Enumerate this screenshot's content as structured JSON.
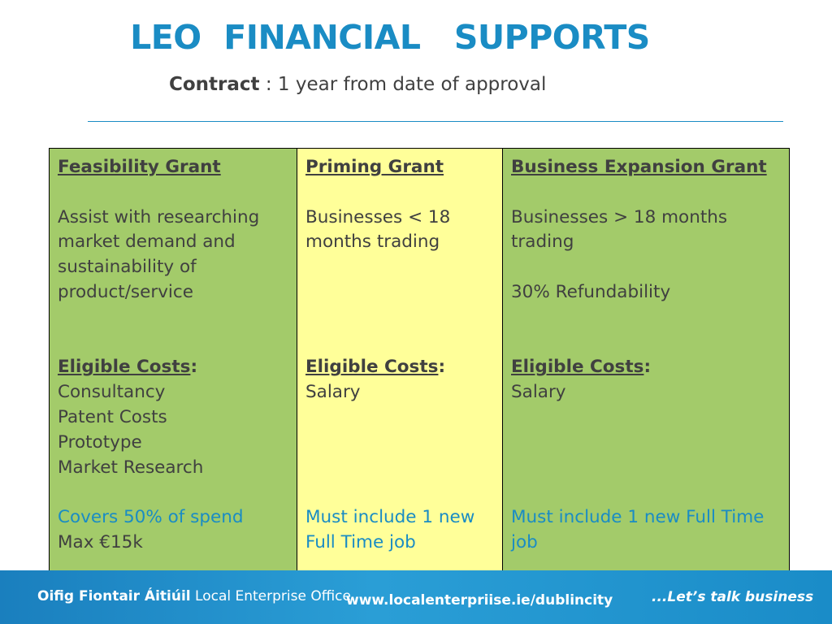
{
  "header": {
    "title": "LEO  FINANCIAL   SUPPORTS",
    "contract_label": "Contract",
    "contract_text": " : 1 year from date of approval"
  },
  "columns": [
    {
      "heading": "Feasibility Grant",
      "desc_lines": [
        "Assist with researching",
        "market demand and",
        "sustainability  of",
        "product/service"
      ],
      "eligible_label": "Eligible Costs",
      "eligible_colon": ":",
      "costs": [
        "Consultancy",
        "Patent Costs",
        "Prototype",
        "Market Research"
      ],
      "note_blue": [
        "Covers 50% of spend"
      ],
      "note_plain": [
        "Max €15k"
      ]
    },
    {
      "heading": "Priming Grant",
      "desc_lines": [
        "Businesses < 18",
        "months trading"
      ],
      "eligible_label": "Eligible Costs",
      "eligible_colon": ":",
      "costs": [
        "Salary"
      ],
      "note_blue": [
        "Must include 1 new",
        "Full Time job"
      ],
      "note_plain": []
    },
    {
      "heading": "Business Expansion Grant",
      "desc_lines": [
        "Businesses > 18 months",
        "trading",
        "",
        "30% Refundability"
      ],
      "eligible_label": "Eligible Costs",
      "eligible_colon": ":",
      "costs": [
        "Salary"
      ],
      "note_blue": [
        "Must include 1 new Full Time",
        "job"
      ],
      "note_plain": []
    }
  ],
  "footer": {
    "org_irish": "Oifig Fiontair Áitiúil",
    "org_english": " Local Enterprise Office",
    "url": "www.localenterpriise.ie/dublincity",
    "tagline": "...Let’s talk business"
  },
  "colors": {
    "accent": "#1a8cc4",
    "green": "#a3cb6a",
    "yellow": "#ffff99"
  }
}
